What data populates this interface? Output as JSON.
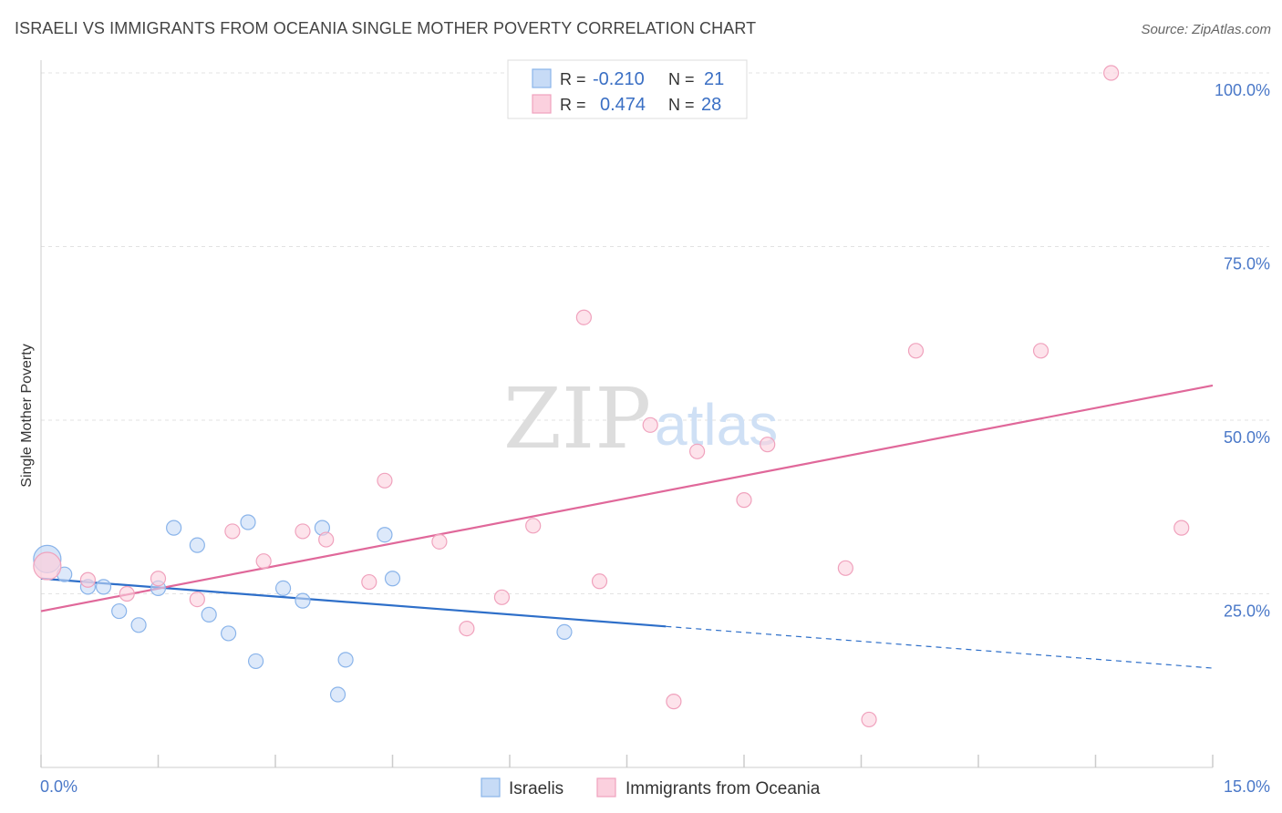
{
  "header": {
    "title": "ISRAELI VS IMMIGRANTS FROM OCEANIA SINGLE MOTHER POVERTY CORRELATION CHART",
    "source": "Source: ZipAtlas.com"
  },
  "watermark": {
    "zip": "ZIP",
    "atlas": "atlas"
  },
  "legend": {
    "rows": [
      {
        "r_label": "R =",
        "r_value": "-0.210",
        "n_label": "N =",
        "n_value": "21"
      },
      {
        "r_label": "R =",
        "r_value": "0.474",
        "n_label": "N =",
        "n_value": "28"
      }
    ]
  },
  "chart_data": {
    "type": "scatter",
    "title": "ISRAELI VS IMMIGRANTS FROM OCEANIA SINGLE MOTHER POVERTY CORRELATION CHART",
    "xlabel": "",
    "ylabel": "Single Mother Poverty",
    "xlim": [
      0,
      15
    ],
    "ylim": [
      0,
      102
    ],
    "x_tick_labels": [
      "0.0%",
      "15.0%"
    ],
    "y_ticks": [
      25,
      50,
      75,
      100
    ],
    "y_tick_labels": [
      "25.0%",
      "50.0%",
      "75.0%",
      "100.0%"
    ],
    "grid": true,
    "legend_position": "top-center",
    "bottom_legend": [
      "Israelis",
      "Immigrants from Oceania"
    ],
    "series": [
      {
        "name": "Israelis",
        "color": "#8ab4ea",
        "fill": "#c7dbf6",
        "line_color": "#2e6fc9",
        "r": -0.21,
        "n": 21,
        "points": [
          [
            0.08,
            30.0
          ],
          [
            0.3,
            27.8
          ],
          [
            0.6,
            26.0
          ],
          [
            0.8,
            26.0
          ],
          [
            1.0,
            22.5
          ],
          [
            1.25,
            20.5
          ],
          [
            1.5,
            25.8
          ],
          [
            1.7,
            34.5
          ],
          [
            2.0,
            32.0
          ],
          [
            2.15,
            22.0
          ],
          [
            2.4,
            19.3
          ],
          [
            2.65,
            35.3
          ],
          [
            2.75,
            15.3
          ],
          [
            3.1,
            25.8
          ],
          [
            3.35,
            24.0
          ],
          [
            3.6,
            34.5
          ],
          [
            3.8,
            10.5
          ],
          [
            3.9,
            15.5
          ],
          [
            4.4,
            33.5
          ],
          [
            4.5,
            27.2
          ],
          [
            6.7,
            19.5
          ]
        ],
        "trend": {
          "x0": 0.0,
          "y0": 27.2,
          "x1": 8.0,
          "y1": 20.3,
          "dash_x1": 15.0,
          "dash_y1": 14.3
        }
      },
      {
        "name": "Immigrants from Oceania",
        "color": "#f0a2bd",
        "fill": "#fbd0de",
        "line_color": "#e0689a",
        "r": 0.474,
        "n": 28,
        "points": [
          [
            0.08,
            29.0
          ],
          [
            0.6,
            27.0
          ],
          [
            1.1,
            25.0
          ],
          [
            1.5,
            27.2
          ],
          [
            2.0,
            24.2
          ],
          [
            2.45,
            34.0
          ],
          [
            2.85,
            29.7
          ],
          [
            3.35,
            34.0
          ],
          [
            3.65,
            32.8
          ],
          [
            4.2,
            26.7
          ],
          [
            4.4,
            41.3
          ],
          [
            5.1,
            32.5
          ],
          [
            5.45,
            20.0
          ],
          [
            5.9,
            24.5
          ],
          [
            6.3,
            34.8
          ],
          [
            6.95,
            64.8
          ],
          [
            7.15,
            26.8
          ],
          [
            7.8,
            49.3
          ],
          [
            8.1,
            9.5
          ],
          [
            8.4,
            45.5
          ],
          [
            9.0,
            38.5
          ],
          [
            9.3,
            46.5
          ],
          [
            10.3,
            28.7
          ],
          [
            10.6,
            6.9
          ],
          [
            11.2,
            60.0
          ],
          [
            12.8,
            60.0
          ],
          [
            13.7,
            100.0
          ],
          [
            14.6,
            34.5
          ]
        ],
        "trend": {
          "x0": 0.0,
          "y0": 22.5,
          "x1": 15.0,
          "y1": 55.0
        }
      }
    ]
  }
}
